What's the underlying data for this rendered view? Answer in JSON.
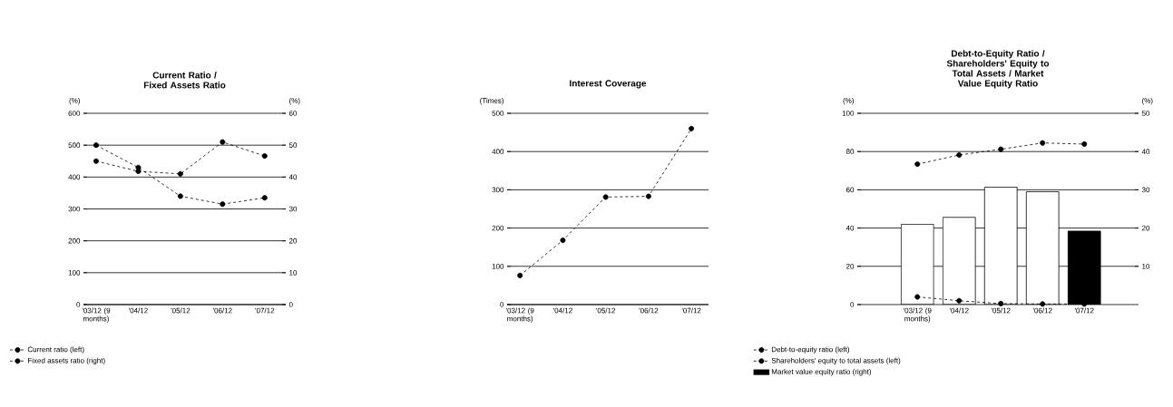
{
  "chart_data": [
    {
      "type": "line",
      "title": "Current Ratio / Fixed Assets Ratio",
      "ylabel": "(%)",
      "y2label": "(%)",
      "categories": [
        "'03/12 (9 months)",
        "'04/12",
        "'05/12",
        "'06/12",
        "'07/12"
      ],
      "series": [
        {
          "name": "Current ratio (left)",
          "color": "#000000",
          "values": [
            450,
            418,
            410,
            510,
            466
          ]
        },
        {
          "name": "Fixed assets ratio (right)",
          "color": "#000000",
          "axis": "y2",
          "values": [
            50,
            43,
            34,
            31.5,
            33.5
          ]
        }
      ],
      "ylim": [
        0,
        600
      ],
      "yticks": [
        0,
        100,
        200,
        300,
        400,
        500,
        600
      ],
      "y2lim": [
        0,
        60
      ],
      "y2ticks": [
        0,
        10,
        20,
        30,
        40,
        50,
        60
      ],
      "grid": "y",
      "legend": "bottom left",
      "marker": "circle",
      "line_style": "dashed"
    },
    {
      "type": "line",
      "title": "Interest Coverage",
      "ylabel": "(Times)",
      "categories": [
        "'03/12 (9 months)",
        "'04/12",
        "'05/12",
        "'06/12",
        "'07/12"
      ],
      "series": [
        {
          "color": "#000000",
          "values": [
            76,
            168,
            281,
            283,
            460
          ]
        }
      ],
      "ylim": [
        0,
        500
      ],
      "yticks": [
        0,
        100,
        200,
        300,
        400,
        500
      ],
      "grid": "y",
      "marker": "circle",
      "line_style": "dashed"
    },
    {
      "type": "line",
      "title": "Debt-to-Equity Ratio / Shareholders' Equity to Total Assets / Market Value Equity Ratio",
      "ylabel": "(%)",
      "y2label": "(%)",
      "categories": [
        "'03/12 (9 months)",
        "'04/12",
        "'05/12",
        "'06/12",
        "'07/12"
      ],
      "series": [
        {
          "name": "Debt-to-equity ratio (left)",
          "color": "#000000",
          "values": [
            4,
            2,
            0.5,
            0.3,
            0.3
          ]
        },
        {
          "name": "Shareholders' equity to total assets (left)",
          "color": "#000000",
          "values": [
            73.4,
            78.2,
            81.2,
            84.5,
            83.9
          ]
        },
        {
          "name": "Market value equity ratio (right)",
          "type": "bar",
          "axis": "y2",
          "color": "#000000",
          "colors": [
            "#ffffff",
            "#ffffff",
            "#ffffff",
            "#ffffff",
            "#000000"
          ],
          "values": [
            21,
            22.8,
            30.7,
            29.5,
            19.2
          ]
        }
      ],
      "ylim": [
        0,
        100
      ],
      "yticks": [
        0,
        20,
        40,
        60,
        80,
        100
      ],
      "y2lim": [
        0,
        50
      ],
      "y2ticks": [
        10,
        20,
        30,
        40,
        50
      ],
      "grid": "y",
      "legend": "bottom left",
      "marker": "circle",
      "line_style": "dashed"
    }
  ]
}
